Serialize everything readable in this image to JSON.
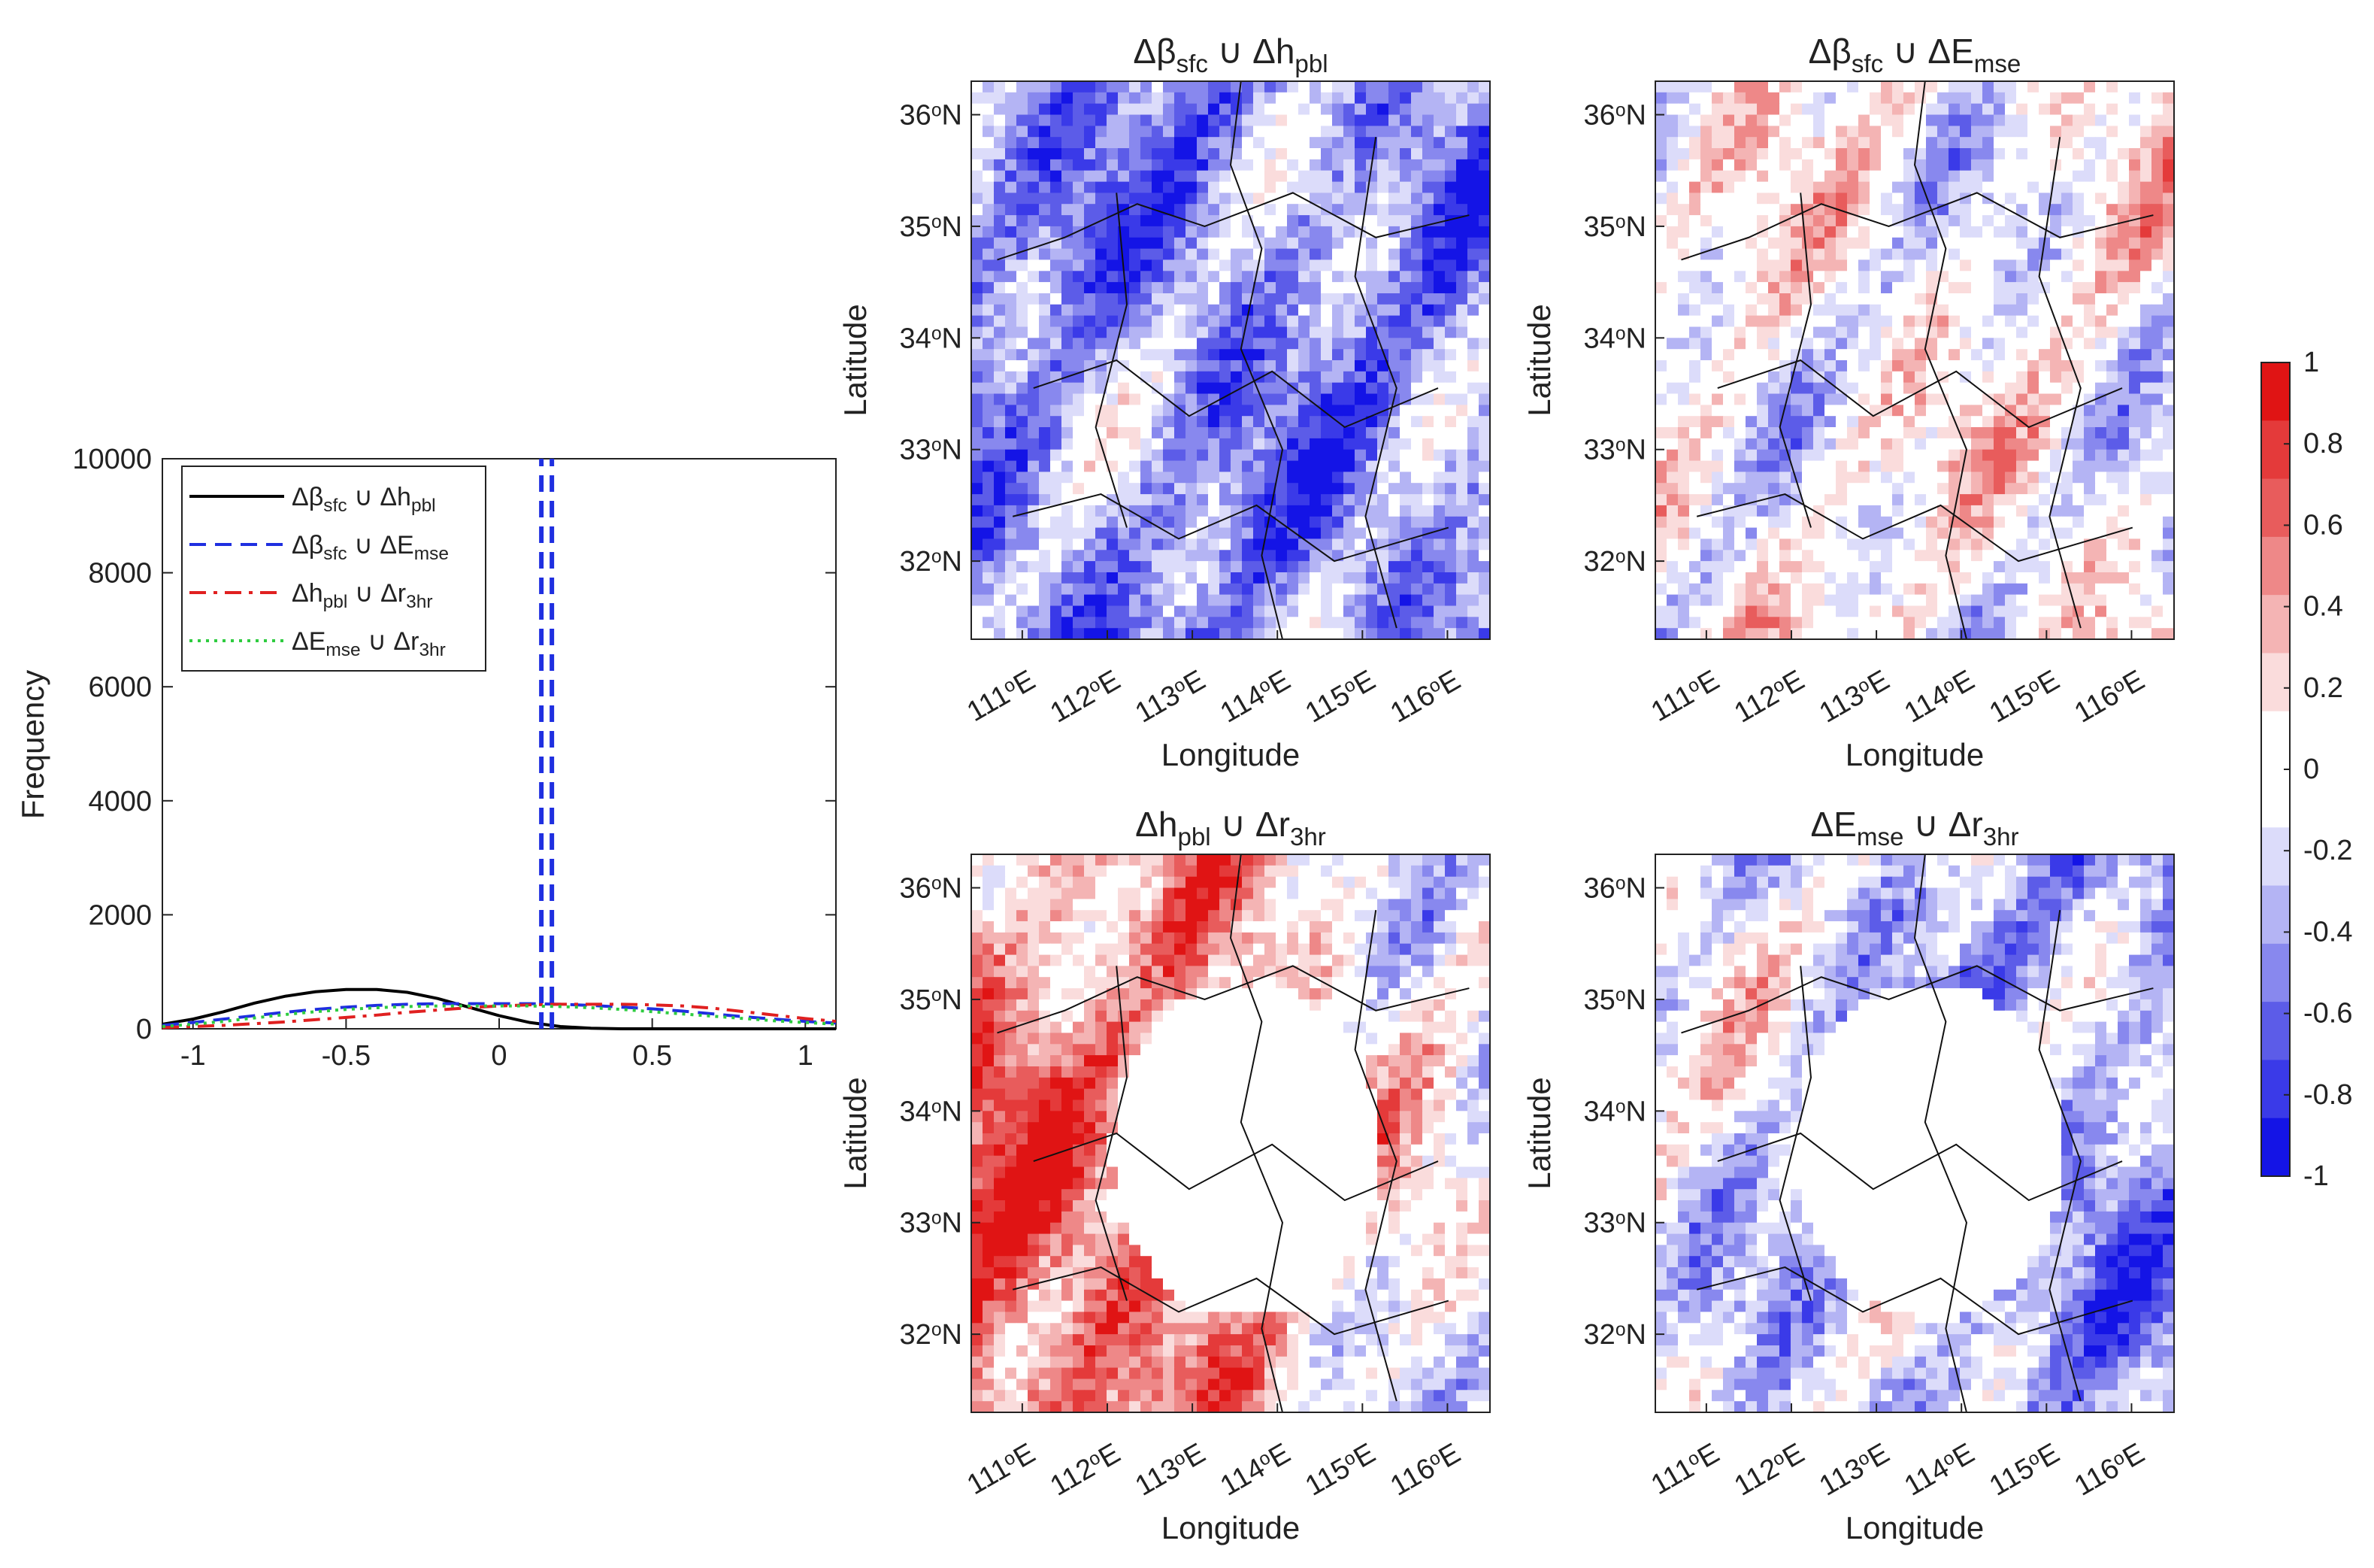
{
  "chart_data": [
    {
      "type": "line",
      "panel": "frequency-distribution",
      "ylabel": "Frequency",
      "xlabel": "",
      "xlim": [
        -1.1,
        1.1
      ],
      "ylim": [
        0,
        10000
      ],
      "xticks": [
        "-1",
        "-0.5",
        "0",
        "0.5",
        "1"
      ],
      "yticks": [
        "0",
        "2000",
        "4000",
        "6000",
        "8000",
        "10000"
      ],
      "legend_position": "top-left",
      "x": [
        -1.1,
        -1.0,
        -0.9,
        -0.8,
        -0.7,
        -0.6,
        -0.5,
        -0.4,
        -0.3,
        -0.2,
        -0.1,
        0.0,
        0.1,
        0.2,
        0.3,
        0.4,
        0.5,
        0.6,
        0.7,
        0.8,
        0.9,
        1.0,
        1.1
      ],
      "series": [
        {
          "legend": {
            "a": "Δβ",
            "asub": "sfc",
            "op": " ∪ ",
            "b": "Δh",
            "bsub": "pbl"
          },
          "color": "#000000",
          "style": "solid",
          "values": [
            80,
            170,
            300,
            450,
            570,
            650,
            690,
            690,
            640,
            530,
            380,
            230,
            110,
            40,
            10,
            0,
            0,
            0,
            0,
            0,
            0,
            0,
            0
          ]
        },
        {
          "legend": {
            "a": "Δβ",
            "asub": "sfc",
            "op": " ∪ ",
            "b": "ΔE",
            "bsub": "mse"
          },
          "color": "#1f2fe0",
          "style": "dashed",
          "values": [
            60,
            110,
            170,
            230,
            290,
            340,
            380,
            410,
            430,
            440,
            440,
            440,
            440,
            430,
            410,
            380,
            350,
            310,
            260,
            210,
            170,
            130,
            100
          ],
          "spike": {
            "x": 0.155,
            "value": 10000
          }
        },
        {
          "legend": {
            "a": "Δh",
            "asub": "pbl",
            "op": " ∪ ",
            "b": "Δr",
            "bsub": "3hr"
          },
          "color": "#e02020",
          "style": "dashdot",
          "values": [
            20,
            40,
            60,
            90,
            120,
            160,
            200,
            240,
            290,
            330,
            370,
            400,
            420,
            430,
            430,
            430,
            420,
            400,
            360,
            300,
            240,
            180,
            130
          ]
        },
        {
          "legend": {
            "a": "ΔE",
            "asub": "mse",
            "op": " ∪ ",
            "b": "Δr",
            "bsub": "3hr"
          },
          "color": "#2ecc40",
          "style": "dotted",
          "values": [
            40,
            80,
            130,
            190,
            250,
            300,
            340,
            370,
            390,
            400,
            400,
            400,
            400,
            390,
            370,
            340,
            300,
            260,
            220,
            180,
            140,
            110,
            80
          ]
        }
      ]
    },
    {
      "type": "heatmap",
      "panel": "map-beta-hpbl",
      "title": {
        "a": "Δβ",
        "asub": "sfc",
        "op": " ∪ ",
        "b": "Δh",
        "bsub": "pbl"
      },
      "xlabel": "Longitude",
      "ylabel": "Latitude",
      "xlim": [
        110.4,
        116.5
      ],
      "ylim": [
        31.3,
        36.3
      ],
      "xticks": [
        "111",
        "112",
        "113",
        "114",
        "115",
        "116"
      ],
      "yticks": [
        "32",
        "33",
        "34",
        "35",
        "36"
      ],
      "xtick_suffix": "E",
      "ytick_suffix": "N",
      "pattern": "mostly-negative",
      "mean_value": -0.45,
      "seed": 11
    },
    {
      "type": "heatmap",
      "panel": "map-beta-emse",
      "title": {
        "a": "Δβ",
        "asub": "sfc",
        "op": " ∪ ",
        "b": "ΔE",
        "bsub": "mse"
      },
      "xlabel": "Longitude",
      "ylabel": "Latitude",
      "xlim": [
        110.4,
        116.5
      ],
      "ylim": [
        31.3,
        36.3
      ],
      "xticks": [
        "111",
        "112",
        "113",
        "114",
        "115",
        "116"
      ],
      "yticks": [
        "32",
        "33",
        "34",
        "35",
        "36"
      ],
      "xtick_suffix": "E",
      "ytick_suffix": "N",
      "pattern": "mixed",
      "mean_value": 0.0,
      "seed": 23
    },
    {
      "type": "heatmap",
      "panel": "map-hpbl-r3hr",
      "title": {
        "a": "Δh",
        "asub": "pbl",
        "op": " ∪ ",
        "b": "Δr",
        "bsub": "3hr"
      },
      "xlabel": "Longitude",
      "ylabel": "Latitude",
      "xlim": [
        110.4,
        116.5
      ],
      "ylim": [
        31.3,
        36.3
      ],
      "xticks": [
        "111",
        "112",
        "113",
        "114",
        "115",
        "116"
      ],
      "yticks": [
        "32",
        "33",
        "34",
        "35",
        "36"
      ],
      "xtick_suffix": "E",
      "ytick_suffix": "N",
      "pattern": "positive-west-blank-center",
      "mean_value": 0.3,
      "seed": 37
    },
    {
      "type": "heatmap",
      "panel": "map-emse-r3hr",
      "title": {
        "a": "ΔE",
        "asub": "mse",
        "op": " ∪ ",
        "b": "Δr",
        "bsub": "3hr"
      },
      "xlabel": "Longitude",
      "ylabel": "Latitude",
      "xlim": [
        110.4,
        116.5
      ],
      "ylim": [
        31.3,
        36.3
      ],
      "xticks": [
        "111",
        "112",
        "113",
        "114",
        "115",
        "116"
      ],
      "yticks": [
        "32",
        "33",
        "34",
        "35",
        "36"
      ],
      "xtick_suffix": "E",
      "ytick_suffix": "N",
      "pattern": "mixed-negative-blank-center",
      "mean_value": -0.2,
      "seed": 53
    }
  ],
  "colorbar": {
    "ticks": [
      "-1",
      "-0.8",
      "-0.6",
      "-0.4",
      "-0.2",
      "0",
      "0.2",
      "0.4",
      "0.6",
      "0.8",
      "1"
    ],
    "levels": [
      "#1414e6",
      "#3a3ae8",
      "#5c5ce8",
      "#8888ee",
      "#b4b4f4",
      "#dcdcfa",
      "#ffffff",
      "#ffffff",
      "#fadcdc",
      "#f4b4b4",
      "#ee8888",
      "#e85c5c",
      "#e43a3a",
      "#e01414"
    ]
  }
}
